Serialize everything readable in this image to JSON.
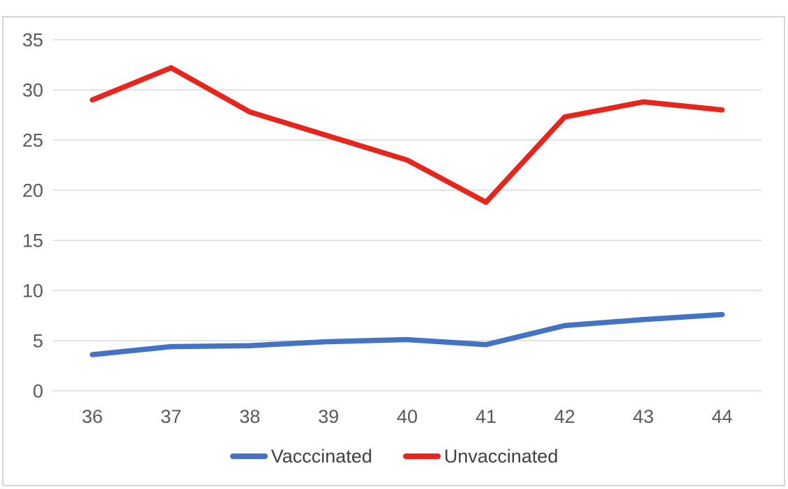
{
  "chart_data": {
    "type": "line",
    "x": [
      36,
      37,
      38,
      39,
      40,
      41,
      42,
      43,
      44
    ],
    "series": [
      {
        "name": "Vacccinated",
        "color": "#4472C4",
        "values": [
          3.6,
          4.4,
          4.5,
          4.9,
          5.1,
          4.6,
          6.5,
          7.1,
          7.6
        ]
      },
      {
        "name": "Unvaccinated",
        "color": "#E8251C",
        "values": [
          29,
          32.2,
          27.8,
          25.4,
          23,
          18.8,
          27.3,
          28.8,
          28
        ]
      }
    ],
    "title": "",
    "xlabel": "",
    "ylabel": "",
    "ylim": [
      0,
      35
    ],
    "yticks": [
      0,
      5,
      10,
      15,
      20,
      25,
      30,
      35
    ],
    "grid": true,
    "legend_position": "bottom"
  },
  "colors": {
    "grid": "#D9D9D9",
    "frame": "#D6D6D6",
    "axis_label": "#595959",
    "legend_label": "#404040",
    "background": "#FFFFFF"
  }
}
